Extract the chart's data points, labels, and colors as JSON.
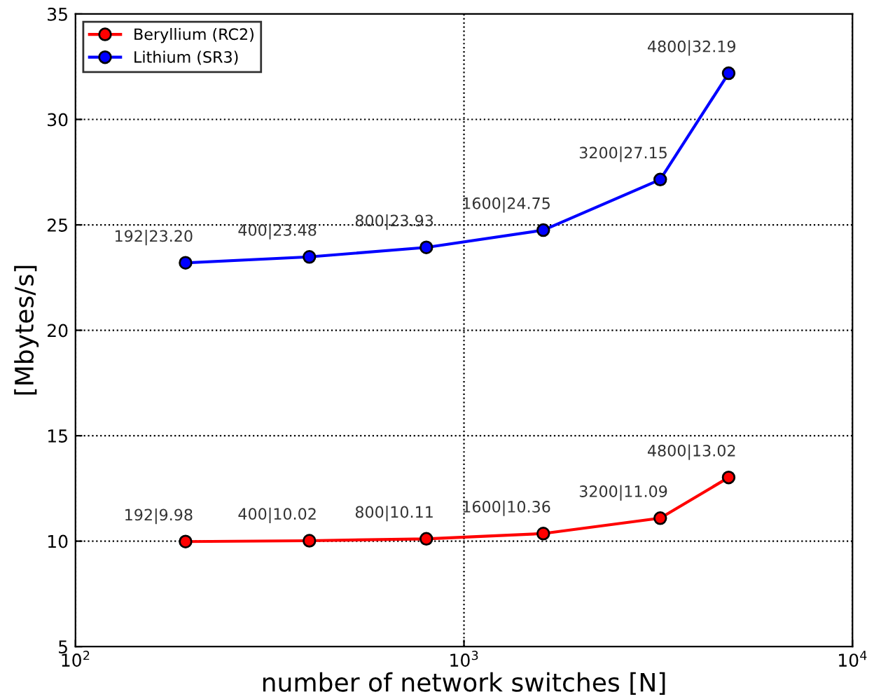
{
  "chart_data": {
    "type": "line",
    "xlabel": "number of network switches [N]",
    "ylabel": "[Mbytes/s]",
    "x": [
      192,
      400,
      800,
      1600,
      3200,
      4800
    ],
    "series": [
      {
        "name": "Beryllium (RC2)",
        "color": "#ff0000",
        "values": [
          9.98,
          10.02,
          10.11,
          10.36,
          11.09,
          13.02
        ],
        "value_labels": [
          "192|9.98",
          "400|10.02",
          "800|10.11",
          "1600|10.36",
          "3200|11.09",
          "4800|13.02"
        ]
      },
      {
        "name": "Lithium (SR3)",
        "color": "#0000ff",
        "values": [
          23.2,
          23.48,
          23.93,
          24.75,
          27.15,
          32.19
        ],
        "value_labels": [
          "192|23.20",
          "400|23.48",
          "800|23.93",
          "1600|24.75",
          "3200|27.15",
          "4800|32.19"
        ]
      }
    ],
    "log": "x",
    "xlim": [
      100,
      10000
    ],
    "xticks": [
      {
        "value": 100,
        "label": "10$^{2}$"
      },
      {
        "value": 1000,
        "label": "10$^{3}$"
      },
      {
        "value": 10000,
        "label": "10$^{4}$"
      }
    ],
    "ylim": [
      5,
      35
    ],
    "yticks": [
      5,
      10,
      15,
      20,
      25,
      30,
      35
    ],
    "grid": true,
    "legend": "top left",
    "marker": "circle",
    "line_style": "solid"
  }
}
